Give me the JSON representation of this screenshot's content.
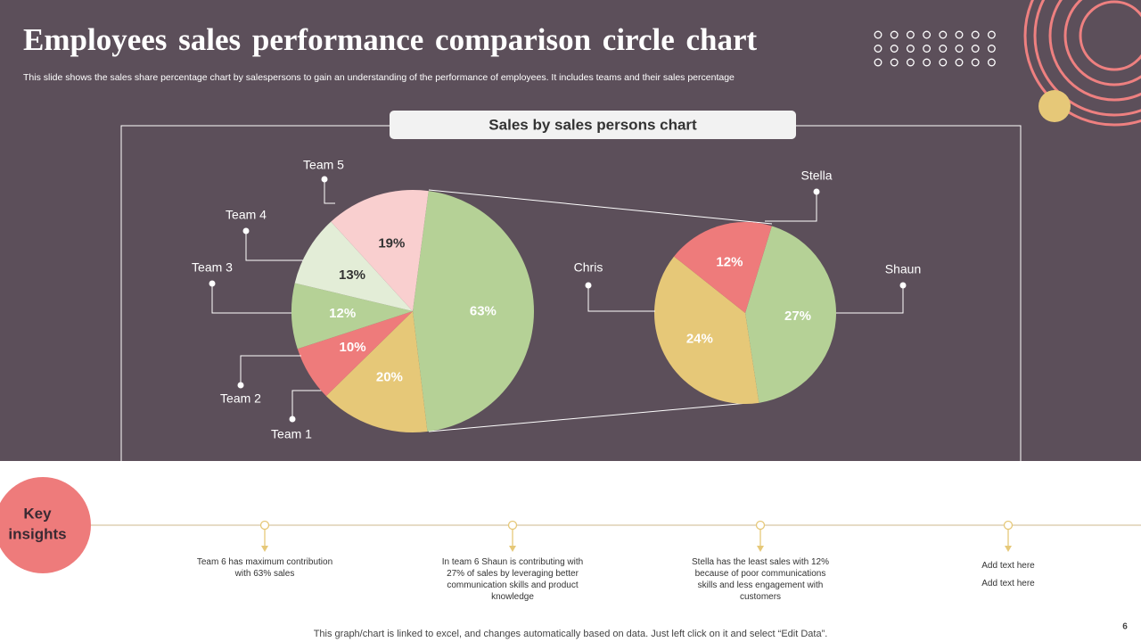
{
  "header": {
    "title": "Employees sales performance comparison circle chart",
    "subtitle": "This slide shows the sales share percentage chart by salespersons to gain an understanding of the performance of employees. It includes teams and their sales percentage"
  },
  "chart_data": {
    "type": "pie",
    "title": "Sales by sales persons chart",
    "categories": [
      null,
      "Team 1",
      "Team 2",
      "Team 3",
      "Team 4",
      "Team 5"
    ],
    "values": [
      63,
      20,
      10,
      12,
      13,
      19
    ],
    "value_labels": [
      "63%",
      "20%",
      "10%",
      "12%",
      "13%",
      "19%"
    ],
    "colors": [
      "#b5d196",
      "#e6c878",
      "#ee7b7b",
      "#b5d196",
      "#e3edd7",
      "#f9cfcf"
    ],
    "secondary": {
      "categories": [
        "Shaun",
        "Chris",
        "Stella"
      ],
      "values": [
        27,
        24,
        12
      ],
      "value_labels": [
        "27%",
        "24%",
        "12%"
      ],
      "colors": [
        "#b5d196",
        "#e6c878",
        "#ee7b7b"
      ]
    }
  },
  "insights": {
    "heading": "Key insights",
    "items": [
      [
        "Team 6 has maximum contribution with 63% sales"
      ],
      [
        "In team 6 Shaun is contributing with 27% of sales by leveraging better communication skills and product knowledge"
      ],
      [
        "Stella has the least sales with 12% because of poor communications skills and less engagement with customers"
      ],
      [
        "Add text here",
        "Add text here"
      ]
    ]
  },
  "footer": "This graph/chart is linked to excel, and changes automatically based on data. Just left click on it and select “Edit Data”.",
  "page_number": 6
}
